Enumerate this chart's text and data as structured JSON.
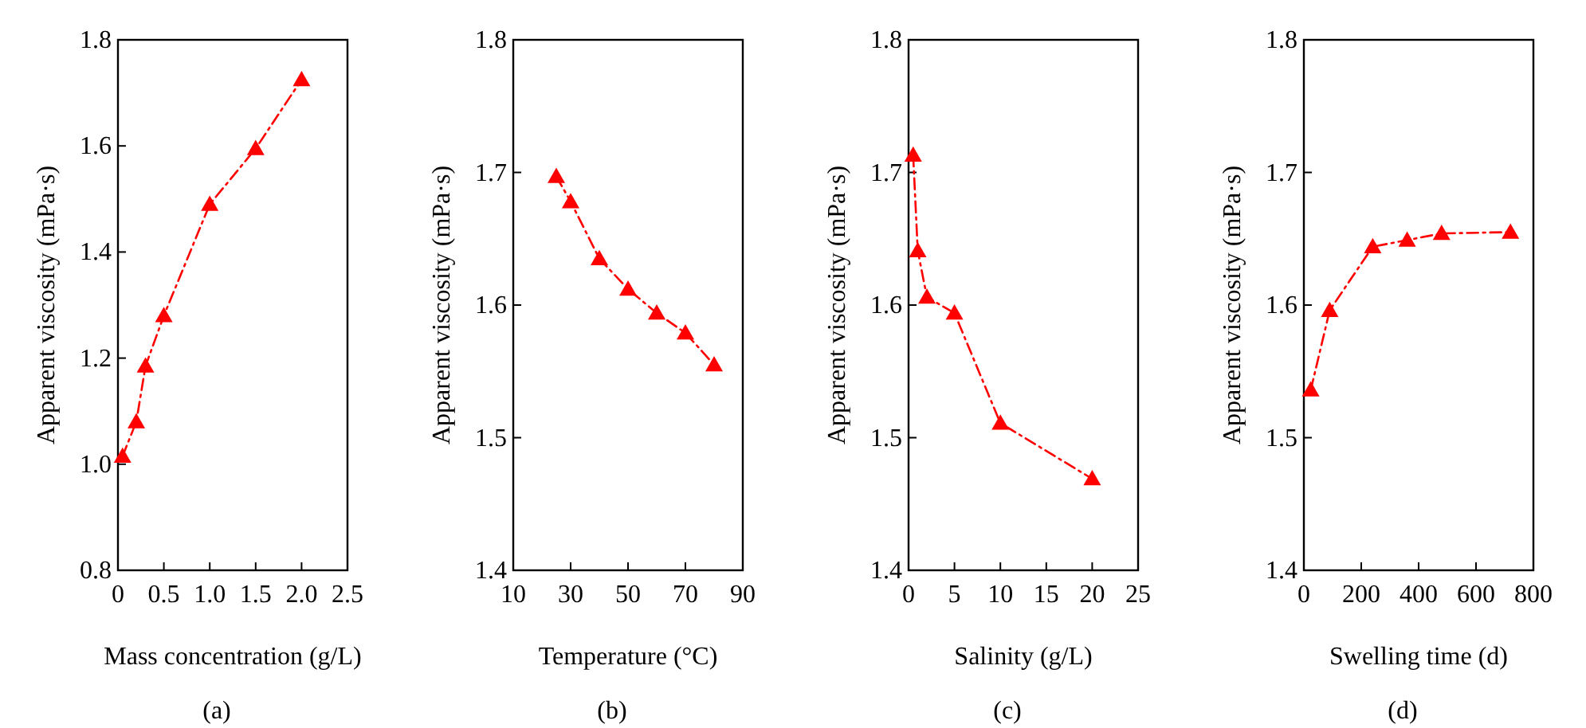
{
  "chart_data": [
    {
      "type": "line",
      "xlabel": "Mass concentration  (g/L)",
      "ylabel": "Apparent viscosity  (mPa·s)",
      "annotations": [
        "(a)"
      ],
      "marker": "triangle",
      "line_style": "dashed",
      "xlim": [
        0,
        2.5
      ],
      "xticks": [
        {
          "value": 0,
          "label": "0"
        },
        {
          "value": 0.5,
          "label": "0.5"
        },
        {
          "value": 1,
          "label": "1.0"
        },
        {
          "value": 1.5,
          "label": "1.5"
        },
        {
          "value": 2,
          "label": "2.0"
        },
        {
          "value": 2.5,
          "label": "2.5"
        }
      ],
      "ylim": [
        0.8,
        1.8
      ],
      "yticks": [
        0.8,
        {
          "value": 1,
          "label": "1.0"
        },
        1.2,
        1.4,
        1.6,
        1.8
      ],
      "series": [
        {
          "color": "#ff0000",
          "x": [
            0.05,
            0.2,
            0.3,
            0.5,
            1.0,
            1.5,
            2.0
          ],
          "values": [
            1.015,
            1.08,
            1.185,
            1.28,
            1.49,
            1.595,
            1.725
          ]
        }
      ]
    },
    {
      "type": "line",
      "xlabel": "Temperature (°C)",
      "ylabel": "Apparent viscosity  (mPa·s)",
      "annotations": [
        "(b)"
      ],
      "marker": "triangle",
      "line_style": "dashed",
      "xlim": [
        10,
        90
      ],
      "xticks": [
        10,
        30,
        50,
        70,
        90
      ],
      "ylim": [
        1.4,
        1.8
      ],
      "yticks": [
        1.4,
        1.5,
        1.6,
        1.7,
        1.8
      ],
      "series": [
        {
          "color": "#ff0000",
          "x": [
            25,
            30,
            40,
            50,
            60,
            70,
            80
          ],
          "values": [
            1.697,
            1.678,
            1.635,
            1.612,
            1.594,
            1.579,
            1.555
          ]
        }
      ]
    },
    {
      "type": "line",
      "xlabel": "Salinity  (g/L)",
      "ylabel": "Apparent viscosity  (mPa·s)",
      "annotations": [
        "(c)"
      ],
      "marker": "triangle",
      "line_style": "dashed",
      "xlim": [
        0,
        25
      ],
      "xticks": [
        0,
        5,
        10,
        15,
        20,
        25
      ],
      "ylim": [
        1.4,
        1.8
      ],
      "yticks": [
        1.4,
        1.5,
        1.6,
        1.7,
        1.8
      ],
      "series": [
        {
          "color": "#ff0000",
          "x": [
            0.5,
            1,
            2,
            5,
            10,
            20
          ],
          "values": [
            1.713,
            1.641,
            1.606,
            1.594,
            1.511,
            1.469
          ]
        }
      ]
    },
    {
      "type": "line",
      "xlabel": "Swelling time  (d)",
      "ylabel": "Apparent viscosity  (mPa·s)",
      "annotations": [
        "(d)"
      ],
      "marker": "triangle",
      "line_style": "dashed",
      "xlim": [
        0,
        800
      ],
      "xticks": [
        0,
        200,
        400,
        600,
        800
      ],
      "ylim": [
        1.4,
        1.8
      ],
      "yticks": [
        1.4,
        1.5,
        1.6,
        1.7,
        1.8
      ],
      "series": [
        {
          "color": "#ff0000",
          "x": [
            24,
            90,
            240,
            360,
            480,
            720
          ],
          "values": [
            1.536,
            1.596,
            1.644,
            1.649,
            1.654,
            1.655
          ]
        }
      ]
    }
  ]
}
